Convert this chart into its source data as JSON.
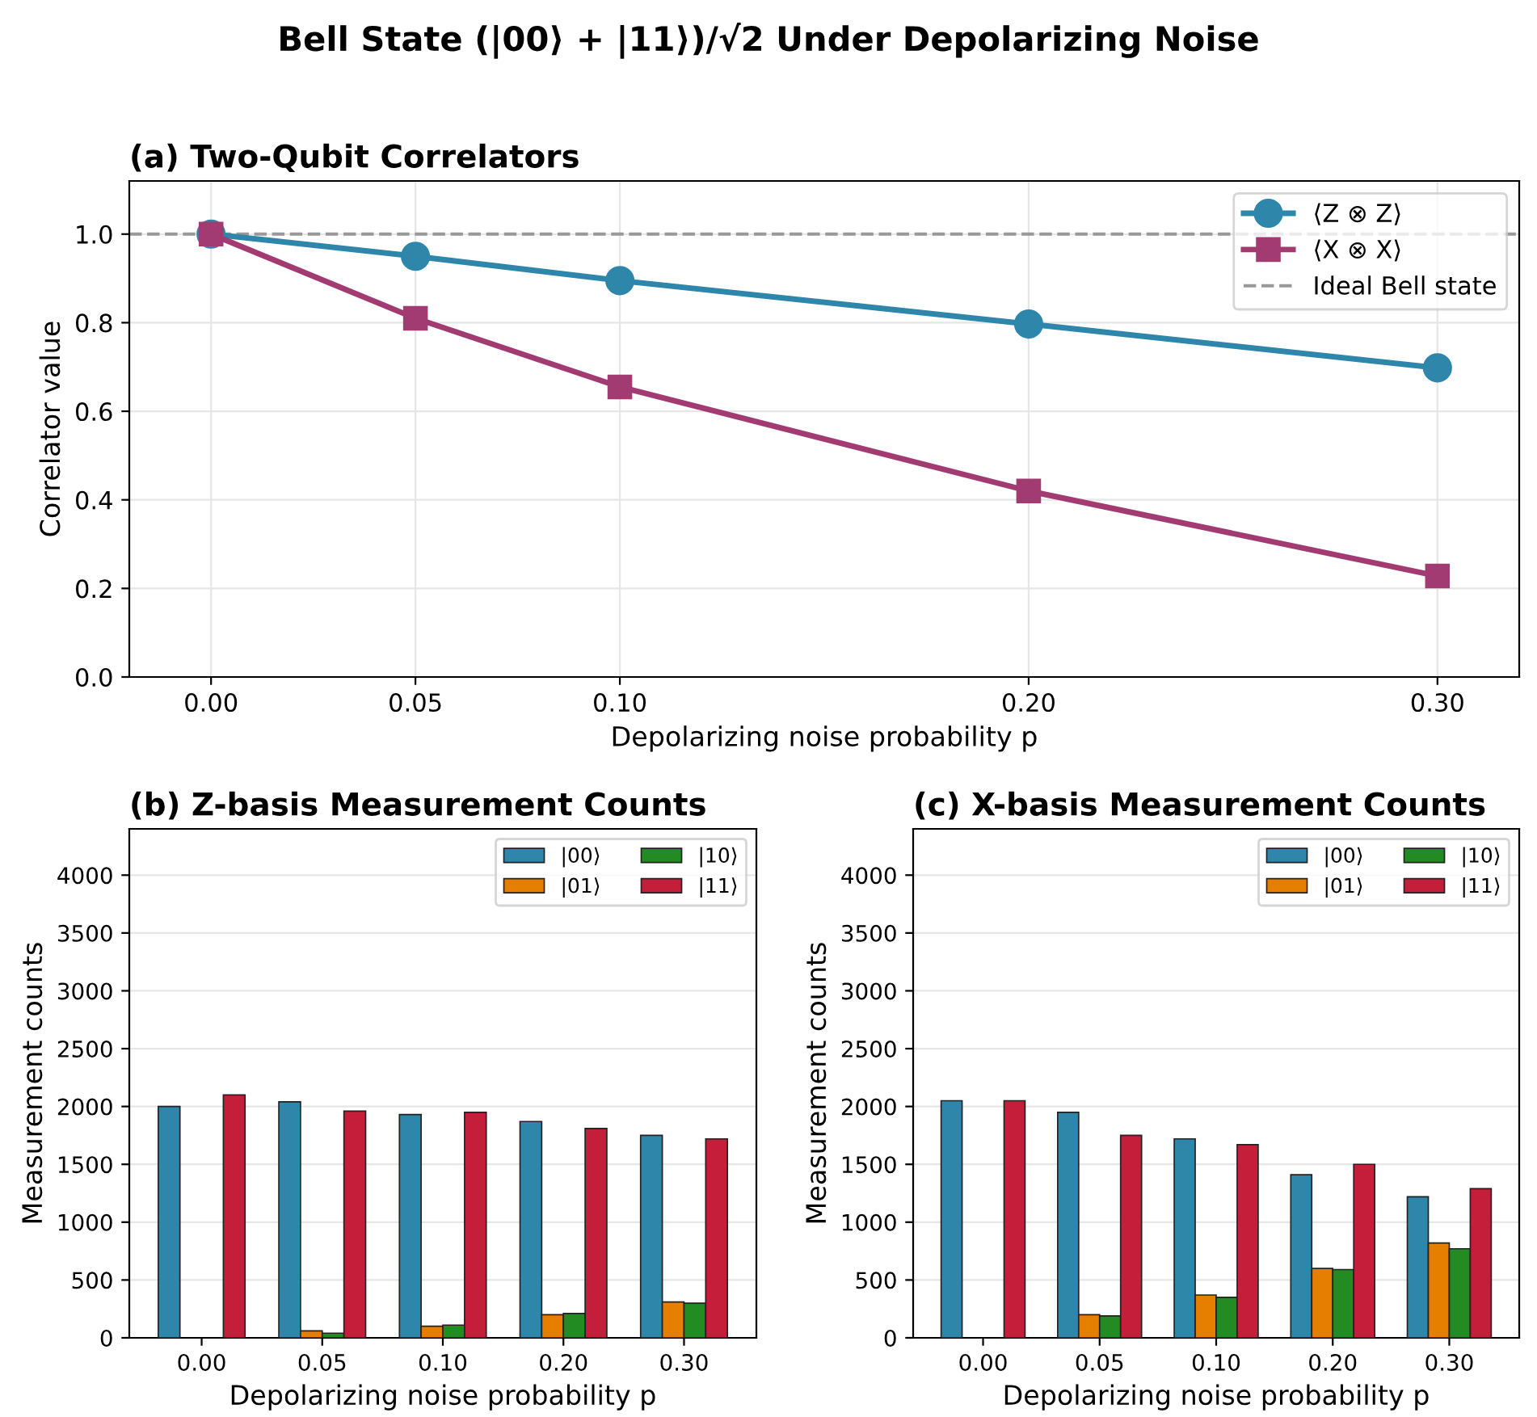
{
  "chart_data": [
    {
      "type": "line",
      "annotations": [
        "Bell State (|00⟩ + |11⟩)/√2 Under Depolarizing Noise"
      ],
      "title": "(a) Two-Qubit Correlators",
      "xlabel": "Depolarizing noise probability p",
      "ylabel": "Correlator value",
      "x": [
        0.0,
        0.05,
        0.1,
        0.2,
        0.3
      ],
      "xlim": [
        -0.02,
        0.32
      ],
      "xticks": [
        {
          "value": 0.0,
          "label": "0.00"
        },
        0.05,
        {
          "value": 0.1,
          "label": "0.10"
        },
        {
          "value": 0.2,
          "label": "0.20"
        },
        {
          "value": 0.3,
          "label": "0.30"
        }
      ],
      "ylim": [
        0,
        1.12
      ],
      "yticks": [
        {
          "value": 0,
          "label": "0.0"
        },
        0.2,
        0.4,
        0.6,
        0.8,
        {
          "value": 1,
          "label": "1.0"
        }
      ],
      "grid": true,
      "legend": "top right",
      "series": [
        {
          "name": "⟨Z ⊗ Z⟩",
          "color": "#2e86ab",
          "marker": "circle",
          "values": [
            1.0,
            0.95,
            0.895,
            0.797,
            0.698
          ]
        },
        {
          "name": "⟨X ⊗ X⟩",
          "color": "#a23b72",
          "marker": "square",
          "values": [
            1.0,
            0.81,
            0.655,
            0.42,
            0.228
          ]
        }
      ],
      "ref_lines": [
        {
          "axis": "y",
          "value": 1.0,
          "label": "Ideal Bell state",
          "color": "#999999",
          "line_style": "dashed"
        }
      ]
    },
    {
      "type": "bar",
      "title": "(b) Z-basis Measurement Counts",
      "xlabel": "Depolarizing noise probability p",
      "ylabel": "Measurement counts",
      "categories": [
        "0.00",
        "0.05",
        "0.10",
        "0.20",
        "0.30"
      ],
      "ylim": [
        0,
        4400
      ],
      "yticks": [
        0,
        500,
        1000,
        1500,
        2000,
        2500,
        3000,
        3500,
        4000
      ],
      "grid": "y",
      "legend": "top right",
      "series": [
        {
          "name": "|00⟩",
          "color": "#2e86ab",
          "values": [
            2000,
            2040,
            1930,
            1870,
            1750
          ]
        },
        {
          "name": "|01⟩",
          "color": "#e67e00",
          "values": [
            null,
            60,
            100,
            200,
            310
          ]
        },
        {
          "name": "|10⟩",
          "color": "#228b22",
          "values": [
            null,
            40,
            110,
            210,
            300
          ]
        },
        {
          "name": "|11⟩",
          "color": "#c41e3a",
          "values": [
            2100,
            1960,
            1950,
            1810,
            1720
          ]
        }
      ]
    },
    {
      "type": "bar",
      "title": "(c) X-basis Measurement Counts",
      "xlabel": "Depolarizing noise probability p",
      "ylabel": "Measurement counts",
      "categories": [
        "0.00",
        "0.05",
        "0.10",
        "0.20",
        "0.30"
      ],
      "ylim": [
        0,
        4400
      ],
      "yticks": [
        0,
        500,
        1000,
        1500,
        2000,
        2500,
        3000,
        3500,
        4000
      ],
      "grid": "y",
      "legend": "top right",
      "series": [
        {
          "name": "|00⟩",
          "color": "#2e86ab",
          "values": [
            2050,
            1950,
            1720,
            1410,
            1220
          ]
        },
        {
          "name": "|01⟩",
          "color": "#e67e00",
          "values": [
            null,
            200,
            370,
            600,
            820
          ]
        },
        {
          "name": "|10⟩",
          "color": "#228b22",
          "values": [
            null,
            190,
            350,
            590,
            770
          ]
        },
        {
          "name": "|11⟩",
          "color": "#c41e3a",
          "values": [
            2050,
            1750,
            1670,
            1500,
            1290
          ]
        }
      ]
    }
  ]
}
